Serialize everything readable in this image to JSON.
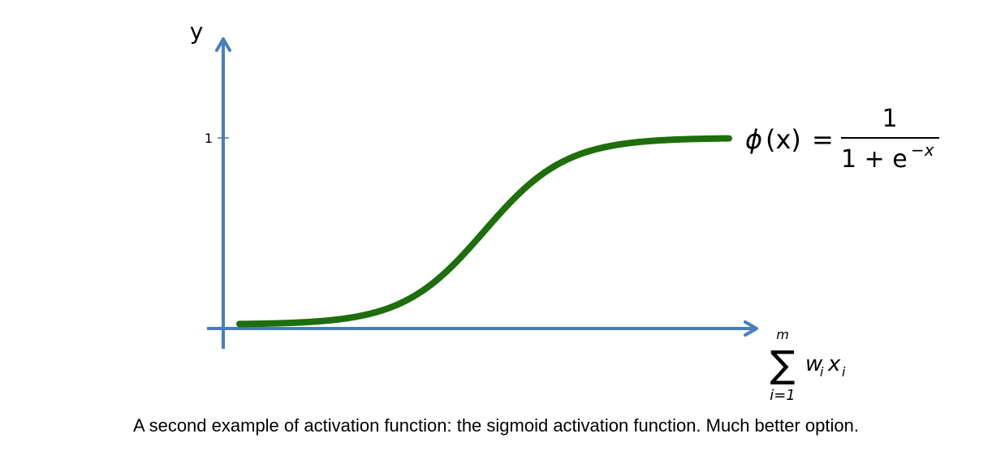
{
  "chart_data": {
    "type": "line",
    "function": "sigmoid",
    "ylabel": "y",
    "xlabel": {
      "sum_symbol": "∑",
      "upper_limit": "m",
      "lower_limit": "i=1",
      "term_w": "w",
      "term_x": "x",
      "subscript": "i"
    },
    "y_ticks": [
      {
        "value": 1,
        "label": "1"
      }
    ],
    "x_range": [
      -6,
      6
    ],
    "ylim": [
      0,
      1
    ],
    "series": [
      {
        "color": "#1e6e0c",
        "points": [
          {
            "x": -6,
            "y": 0.002
          },
          {
            "x": -5,
            "y": 0.007
          },
          {
            "x": -4,
            "y": 0.018
          },
          {
            "x": -3,
            "y": 0.047
          },
          {
            "x": -2,
            "y": 0.119
          },
          {
            "x": -1,
            "y": 0.269
          },
          {
            "x": 0,
            "y": 0.5
          },
          {
            "x": 1,
            "y": 0.731
          },
          {
            "x": 2,
            "y": 0.881
          },
          {
            "x": 3,
            "y": 0.953
          },
          {
            "x": 4,
            "y": 0.982
          },
          {
            "x": 5,
            "y": 0.993
          },
          {
            "x": 6,
            "y": 0.998
          }
        ]
      }
    ],
    "formula": {
      "lhs_phi": "ϕ",
      "lhs_arg": "(x)",
      "equals": "=",
      "numerator": "1",
      "denominator_base": "1 + e",
      "denominator_exp": "−x"
    },
    "axis_color": "#4a7ebb",
    "grid": false,
    "legend": "none"
  },
  "caption": "A second example of activation function: the sigmoid activation function. Much better option."
}
